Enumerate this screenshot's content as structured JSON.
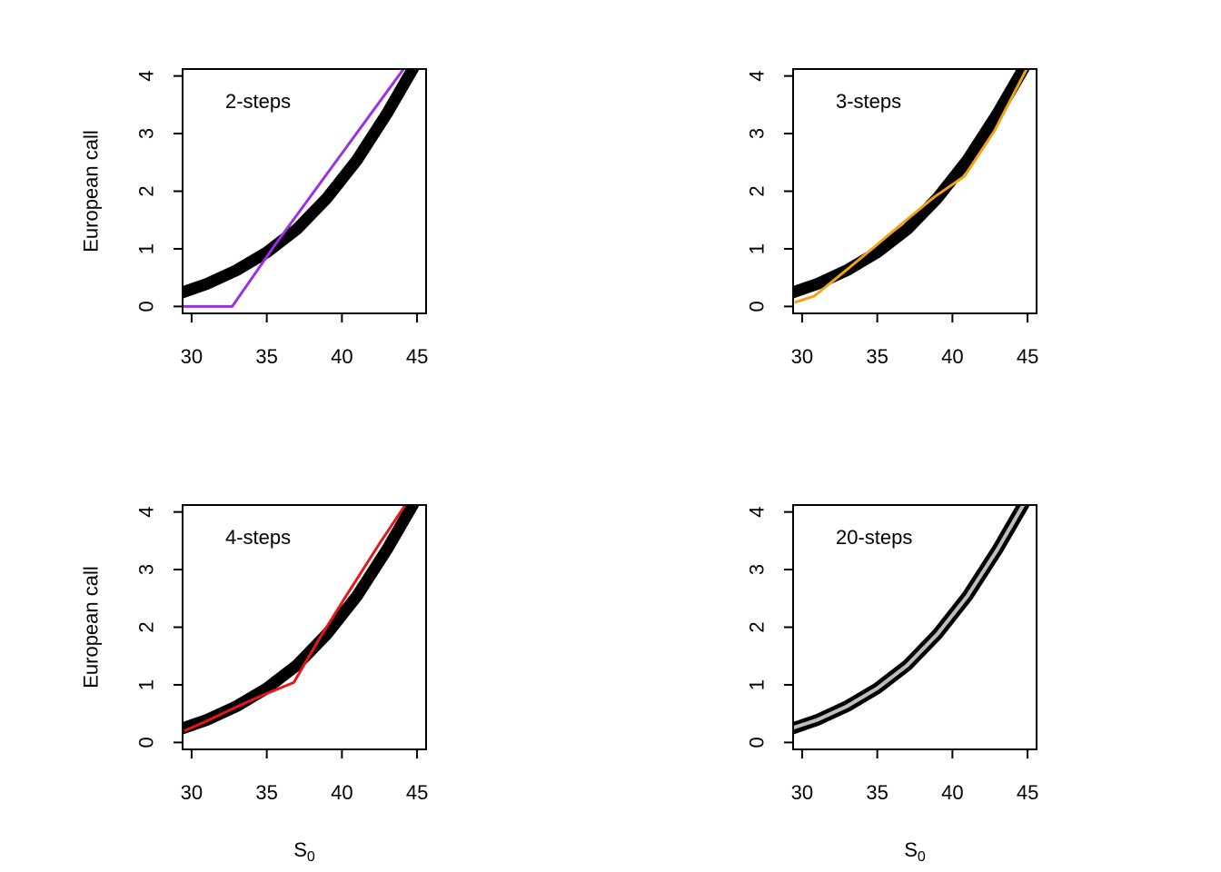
{
  "colors": {
    "reference_curve": "#000000",
    "axis": "#000000",
    "background": "#ffffff"
  },
  "chart_data": [
    {
      "type": "line",
      "annotation": "2-steps",
      "ylabel": "European call",
      "xlabel": "",
      "xlim": [
        29.4,
        45.6
      ],
      "ylim": [
        -0.12,
        4.12
      ],
      "xticks": [
        30,
        35,
        40,
        45
      ],
      "yticks": [
        0,
        1,
        2,
        3,
        4
      ],
      "series": [
        {
          "role": "reference",
          "color": "#000000",
          "x": [
            29,
            31,
            33,
            35,
            37,
            39,
            41,
            43,
            45
          ],
          "y": [
            0.21,
            0.39,
            0.63,
            0.94,
            1.34,
            1.88,
            2.54,
            3.35,
            4.25
          ]
        },
        {
          "role": "approximation",
          "color": "#9b30e6",
          "x": [
            29,
            32.7,
            35.5,
            44.6
          ],
          "y": [
            0,
            0,
            1.05,
            4.3
          ]
        }
      ]
    },
    {
      "type": "line",
      "annotation": "3-steps",
      "ylabel": "",
      "xlabel": "",
      "xlim": [
        29.4,
        45.6
      ],
      "ylim": [
        -0.12,
        4.12
      ],
      "xticks": [
        30,
        35,
        40,
        45
      ],
      "yticks": [
        0,
        1,
        2,
        3,
        4
      ],
      "series": [
        {
          "role": "reference",
          "color": "#000000",
          "x": [
            29,
            31,
            33,
            35,
            37,
            39,
            41,
            43,
            45
          ],
          "y": [
            0.21,
            0.39,
            0.63,
            0.94,
            1.34,
            1.88,
            2.54,
            3.35,
            4.25
          ]
        },
        {
          "role": "approximation",
          "color": "#f5a00f",
          "x": [
            29.5,
            30.8,
            32.8,
            34.8,
            36.8,
            38.8,
            40.8,
            42.8,
            45.3
          ],
          "y": [
            0.07,
            0.18,
            0.6,
            1.03,
            1.47,
            1.9,
            2.26,
            3.05,
            4.3
          ]
        }
      ]
    },
    {
      "type": "line",
      "annotation": "4-steps",
      "ylabel": "European call",
      "xlabel": "S0",
      "xlim": [
        29.4,
        45.6
      ],
      "ylim": [
        -0.12,
        4.12
      ],
      "xticks": [
        30,
        35,
        40,
        45
      ],
      "yticks": [
        0,
        1,
        2,
        3,
        4
      ],
      "series": [
        {
          "role": "reference",
          "color": "#000000",
          "x": [
            29,
            31,
            33,
            35,
            37,
            39,
            41,
            43,
            45
          ],
          "y": [
            0.21,
            0.39,
            0.63,
            0.94,
            1.34,
            1.88,
            2.54,
            3.35,
            4.25
          ]
        },
        {
          "role": "approximation",
          "color": "#e8161b",
          "x": [
            29.5,
            31,
            33,
            35,
            36.8,
            38.5,
            40.3,
            42.5,
            44.8
          ],
          "y": [
            0.2,
            0.37,
            0.62,
            0.85,
            1.04,
            1.8,
            2.55,
            3.45,
            4.35
          ]
        }
      ]
    },
    {
      "type": "line",
      "annotation": "20-steps",
      "ylabel": "",
      "xlabel": "S0",
      "xlim": [
        29.4,
        45.6
      ],
      "ylim": [
        -0.12,
        4.12
      ],
      "xticks": [
        30,
        35,
        40,
        45
      ],
      "yticks": [
        0,
        1,
        2,
        3,
        4
      ],
      "series": [
        {
          "role": "reference",
          "color": "#000000",
          "x": [
            29,
            31,
            33,
            35,
            37,
            39,
            41,
            43,
            45
          ],
          "y": [
            0.21,
            0.39,
            0.63,
            0.94,
            1.34,
            1.88,
            2.54,
            3.35,
            4.25
          ]
        },
        {
          "role": "approximation",
          "color": "#bebebe",
          "x": [
            29,
            31,
            33,
            35,
            37,
            39,
            41,
            43,
            45
          ],
          "y": [
            0.22,
            0.39,
            0.63,
            0.94,
            1.34,
            1.88,
            2.54,
            3.35,
            4.25
          ]
        }
      ]
    }
  ]
}
